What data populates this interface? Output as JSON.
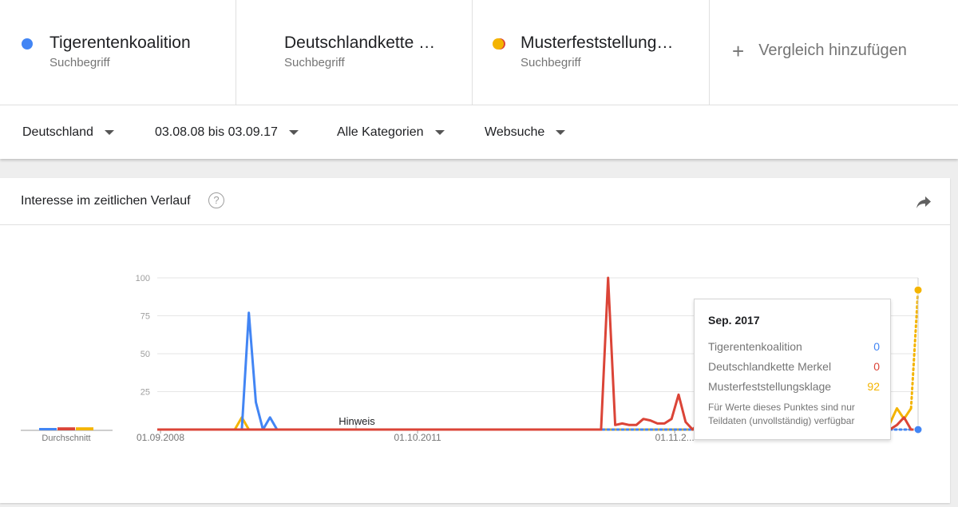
{
  "terms": [
    {
      "name": "Tigerentenkoalition",
      "sub": "Suchbegriff",
      "color": "#4285f4"
    },
    {
      "name": "Deutschlandkette …",
      "sub": "Suchbegriff",
      "color": "#db4437"
    },
    {
      "name": "Musterfeststellung…",
      "sub": "Suchbegriff",
      "color": "#f4b400"
    }
  ],
  "add_compare": {
    "label": "Vergleich hinzufügen",
    "icon": "plus-icon"
  },
  "filters": {
    "region": "Deutschland",
    "period": "03.08.08 bis 03.09.17",
    "category": "Alle Kategorien",
    "search_type": "Websuche"
  },
  "card": {
    "title": "Interesse im zeitlichen Verlauf",
    "help_icon": "?",
    "share_icon": "share-icon"
  },
  "chart_labels": {
    "average": "Durchschnitt",
    "note": "Hinweis"
  },
  "chart_data": {
    "type": "line",
    "x_ticks": [
      "01.09.2008",
      "01.10.2011",
      "01.11.2..."
    ],
    "y_ticks": [
      25,
      50,
      75,
      100
    ],
    "ylim": [
      0,
      100
    ],
    "grid": true,
    "n_points": 109,
    "series": [
      {
        "name": "Tigerentenkoalition",
        "color": "#4285f4",
        "points": [
          [
            0,
            0
          ],
          [
            12,
            0
          ],
          [
            13,
            77
          ],
          [
            14,
            18
          ],
          [
            15,
            0
          ],
          [
            16,
            8
          ],
          [
            17,
            0
          ],
          [
            108,
            0
          ]
        ]
      },
      {
        "name": "Deutschlandkette Merkel",
        "color": "#db4437",
        "points": [
          [
            0,
            0
          ],
          [
            63,
            0
          ],
          [
            64,
            100
          ],
          [
            65,
            3
          ],
          [
            66,
            4
          ],
          [
            67,
            3
          ],
          [
            68,
            3
          ],
          [
            69,
            7
          ],
          [
            70,
            6
          ],
          [
            71,
            4
          ],
          [
            72,
            4
          ],
          [
            73,
            7
          ],
          [
            74,
            23
          ],
          [
            75,
            5
          ],
          [
            76,
            0
          ],
          [
            77,
            5
          ],
          [
            78,
            4
          ],
          [
            79,
            4
          ],
          [
            80,
            0
          ],
          [
            81,
            1
          ],
          [
            82,
            0
          ],
          [
            84,
            2
          ],
          [
            86,
            0
          ],
          [
            88,
            3
          ],
          [
            90,
            0
          ],
          [
            92,
            2
          ],
          [
            94,
            0
          ],
          [
            96,
            2
          ],
          [
            98,
            0
          ],
          [
            100,
            2
          ],
          [
            101,
            0
          ],
          [
            103,
            2
          ],
          [
            104,
            0
          ],
          [
            105,
            3
          ],
          [
            106,
            8
          ],
          [
            107,
            0
          ],
          [
            108,
            0
          ]
        ]
      },
      {
        "name": "Musterfeststellungsklage",
        "color": "#f4b400",
        "points": [
          [
            0,
            0
          ],
          [
            11,
            0
          ],
          [
            12,
            8
          ],
          [
            13,
            0
          ],
          [
            103,
            0
          ],
          [
            104,
            4
          ],
          [
            105,
            14
          ],
          [
            106,
            7
          ],
          [
            107,
            14
          ],
          [
            108,
            92
          ]
        ]
      }
    ],
    "average_bars": [
      1,
      2,
      2
    ]
  },
  "tooltip": {
    "title": "Sep. 2017",
    "rows": [
      {
        "label": "Tigerentenkoalition",
        "value": "0",
        "color": "#4285f4"
      },
      {
        "label": "Deutschlandkette Merkel",
        "value": "0",
        "color": "#db4437"
      },
      {
        "label": "Musterfeststellungsklage",
        "value": "92",
        "color": "#f4b400"
      }
    ],
    "note": "Für Werte dieses Punktes sind nur Teildaten (unvollständig) verfügbar"
  }
}
